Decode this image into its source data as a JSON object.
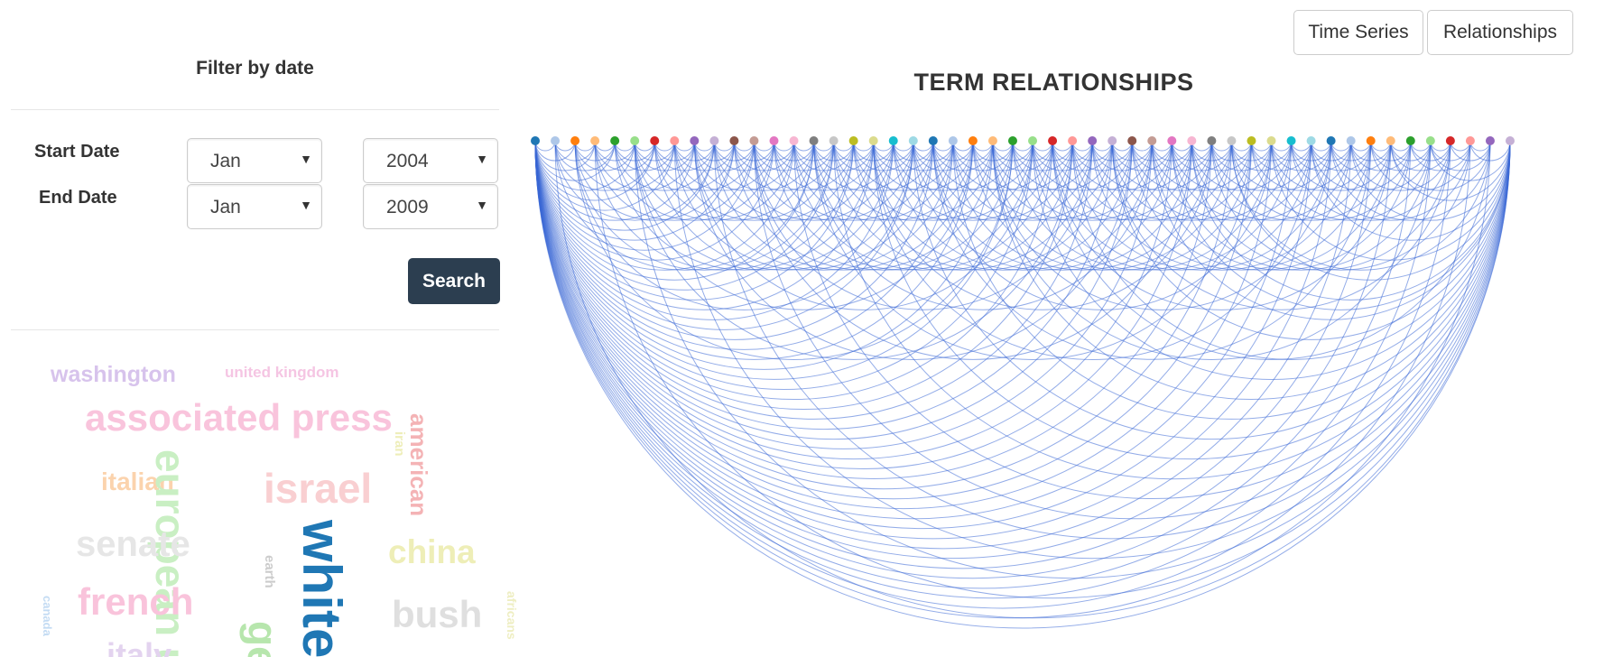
{
  "sidebar": {
    "filter_title": "Filter by date",
    "start_label": "Start Date",
    "end_label": "End Date",
    "start_month": "Jan",
    "start_year": "2004",
    "end_month": "Jan",
    "end_year": "2009",
    "search_label": "Search"
  },
  "tabs": {
    "time_series": "Time Series",
    "relationships": "Relationships"
  },
  "chart_title": "TERM RELATIONSHIPS",
  "word_cloud": [
    {
      "text": "washington",
      "color": "#d7c3ec"
    },
    {
      "text": "united kingdom",
      "color": "#f5c5e3"
    },
    {
      "text": "associated press",
      "color": "#f9c4dc"
    },
    {
      "text": "italian",
      "color": "#fbd3ad"
    },
    {
      "text": "european u",
      "color": "#c9efc3"
    },
    {
      "text": "israel",
      "color": "#f9cfd1"
    },
    {
      "text": "iran",
      "color": "#eeeeb9"
    },
    {
      "text": "american",
      "color": "#f4b3b5"
    },
    {
      "text": "senate",
      "color": "#e6e6e6"
    },
    {
      "text": "white",
      "color": "#1f77b4"
    },
    {
      "text": "earth",
      "color": "#cccccc"
    },
    {
      "text": "china",
      "color": "#eeeeb7"
    },
    {
      "text": "french",
      "color": "#f9c3db"
    },
    {
      "text": "bush",
      "color": "#dfdfdf"
    },
    {
      "text": "canada",
      "color": "#c3dbf3"
    },
    {
      "text": "italy",
      "color": "#e3d3ef"
    },
    {
      "text": "ge",
      "color": "#b7e6ad"
    },
    {
      "text": "africans",
      "color": "#eeeec2"
    }
  ],
  "node_colors": [
    "#1f77b4",
    "#aec7e8",
    "#ff7f0e",
    "#ffbb78",
    "#2ca02c",
    "#98df8a",
    "#d62728",
    "#ff9896",
    "#9467bd",
    "#c5b0d5",
    "#8c564b",
    "#c49c94",
    "#e377c2",
    "#f7b6d2",
    "#7f7f7f",
    "#c7c7c7",
    "#bcbd22",
    "#dbdb8d",
    "#17becf",
    "#9edae5"
  ],
  "node_count": 50,
  "link_color": "#3b67d6"
}
